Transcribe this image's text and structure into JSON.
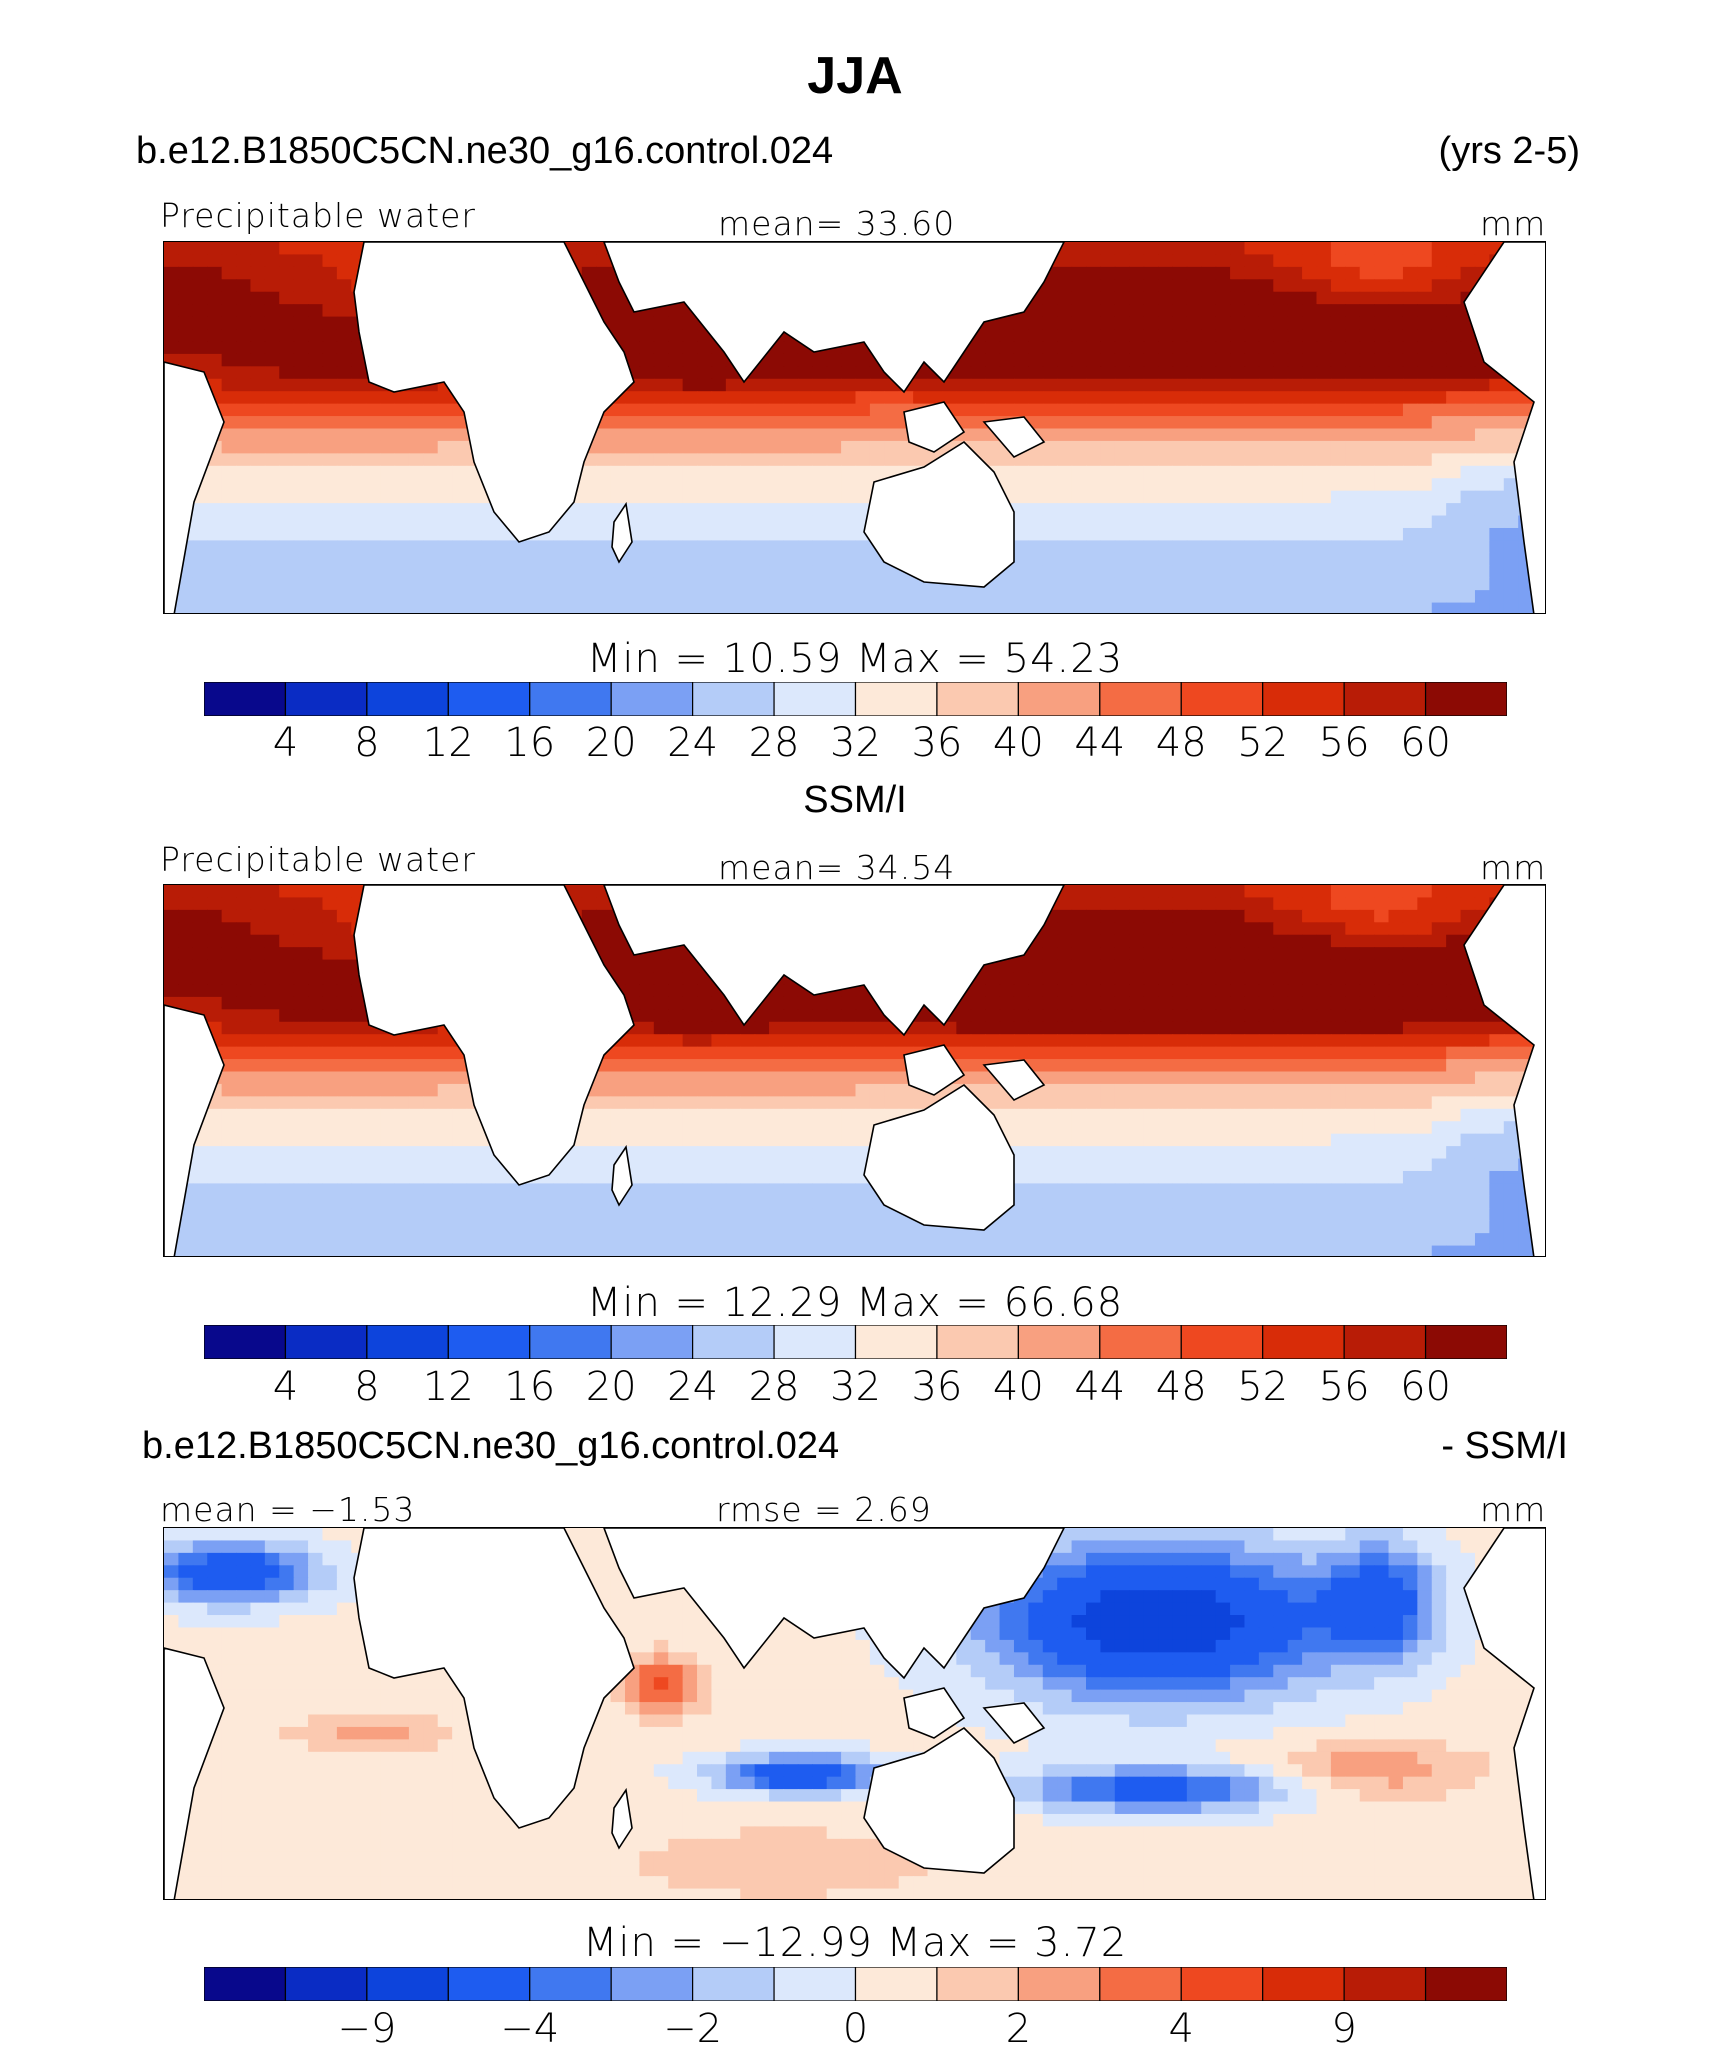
{
  "figure": {
    "title": "JJA",
    "case_name": "b.e12.B1850C5CN.ne30_g16.control.024",
    "years": "(yrs 2-5)"
  },
  "panels": [
    {
      "id": "model",
      "header_left": "Precipitable water",
      "header_center": "mean=  33.60",
      "units": "mm",
      "stats": "Min =  10.59  Max =  54.23"
    },
    {
      "id": "obs",
      "subtitle": "SSM/I",
      "header_left": "Precipitable water",
      "header_center": "mean=  34.54",
      "units": "mm",
      "stats": "Min =  12.29  Max =  66.68"
    },
    {
      "id": "diff",
      "subtitle_left": "b.e12.B1850C5CN.ne30_g16.control.024",
      "subtitle_right": "- SSM/I",
      "header_left": "mean =  −1.53",
      "header_center": "rmse =    2.69",
      "units": "mm",
      "stats": "Min = −12.99  Max =    3.72"
    }
  ],
  "colorbar_colors": [
    "#08088c",
    "#0a2cc4",
    "#0d44dc",
    "#1e5cf0",
    "#4078f0",
    "#7ba0f4",
    "#b4ccf8",
    "#dce8fc",
    "#fde9d9",
    "#fbc9b0",
    "#f8a080",
    "#f46c44",
    "#ee4820",
    "#d82c08",
    "#b81c06",
    "#8c0a04"
  ],
  "colors": {
    "axis": "#000000",
    "land": "#ffffff",
    "coast": "#000000"
  },
  "chart_data": [
    {
      "type": "heatmap",
      "title": "Precipitable water",
      "case": "b.e12.B1850C5CN.ne30_g16.control.024",
      "mean": 33.6,
      "min": 10.59,
      "max": 54.23,
      "units": "mm",
      "contour_levels": [
        4,
        8,
        12,
        16,
        20,
        24,
        28,
        32,
        36,
        40,
        44,
        48,
        52,
        56,
        60
      ],
      "tick_labels": [
        "4",
        "8",
        "12",
        "16",
        "20",
        "24",
        "28",
        "32",
        "36",
        "40",
        "44",
        "48",
        "52",
        "56",
        "60"
      ]
    },
    {
      "type": "heatmap",
      "title": "Precipitable water",
      "case": "SSM/I",
      "mean": 34.54,
      "min": 12.29,
      "max": 66.68,
      "units": "mm",
      "contour_levels": [
        4,
        8,
        12,
        16,
        20,
        24,
        28,
        32,
        36,
        40,
        44,
        48,
        52,
        56,
        60
      ],
      "tick_labels": [
        "4",
        "8",
        "12",
        "16",
        "20",
        "24",
        "28",
        "32",
        "36",
        "40",
        "44",
        "48",
        "52",
        "56",
        "60"
      ]
    },
    {
      "type": "heatmap",
      "title": "b.e12.B1850C5CN.ne30_g16.control.024 - SSM/I",
      "mean": -1.53,
      "rmse": 2.69,
      "min": -12.99,
      "max": 3.72,
      "units": "mm",
      "contour_levels": [
        -12,
        -9,
        -6,
        -4,
        -3,
        -2,
        -1,
        0,
        1,
        2,
        3,
        4,
        6,
        9,
        12
      ],
      "tick_labels": [
        "−9",
        "−4",
        "−2",
        "0",
        "2",
        "4",
        "9"
      ],
      "tick_label_indices": [
        1,
        3,
        5,
        7,
        9,
        11,
        13
      ]
    }
  ]
}
